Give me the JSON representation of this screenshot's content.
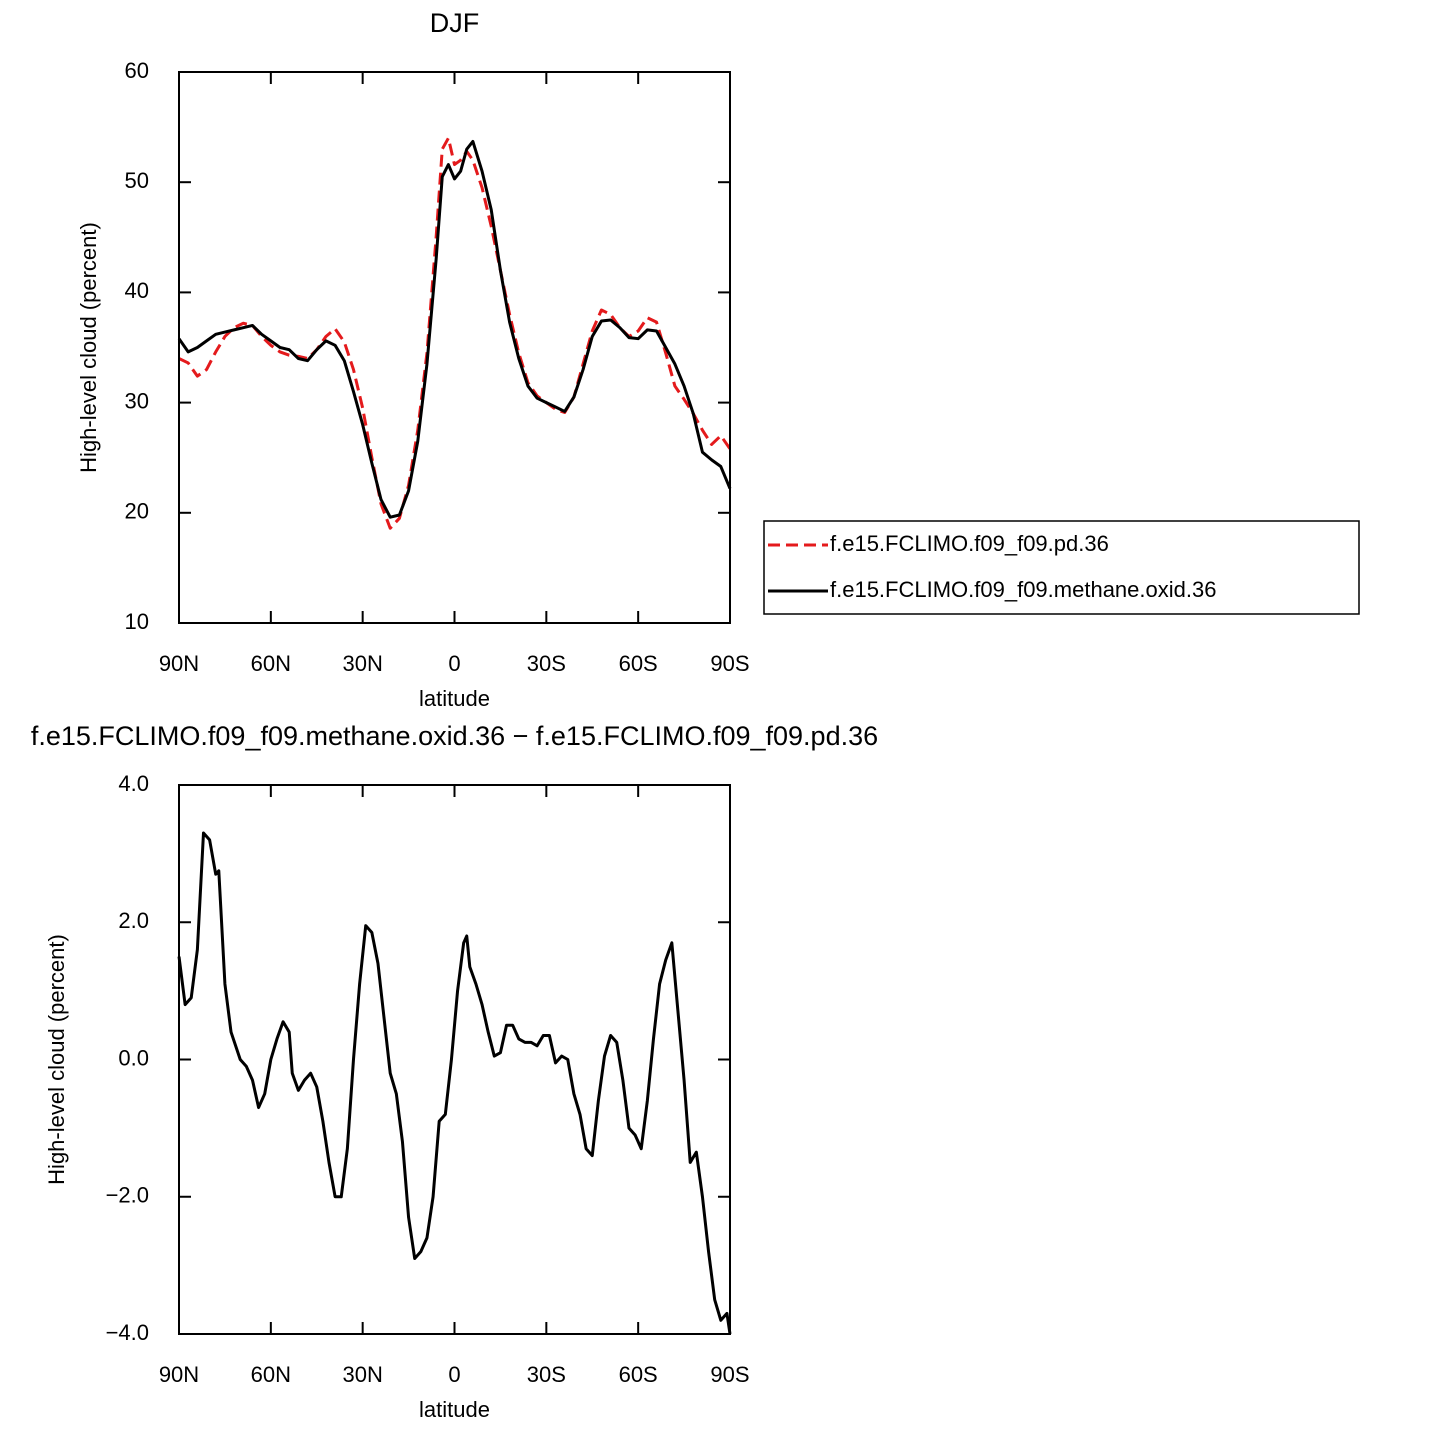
{
  "chart_data": [
    {
      "type": "line",
      "title": "DJF",
      "xlabel": "latitude",
      "ylabel": "High-level cloud (percent)",
      "xlim": [
        90,
        -90
      ],
      "xticks": [
        {
          "value": 90,
          "label": "90N"
        },
        {
          "value": 60,
          "label": "60N"
        },
        {
          "value": 30,
          "label": "30N"
        },
        0,
        {
          "value": -30,
          "label": "30S"
        },
        {
          "value": -60,
          "label": "60S"
        },
        {
          "value": -90,
          "label": "90S"
        }
      ],
      "ylim": [
        10,
        60
      ],
      "yticks": [
        10,
        20,
        30,
        40,
        50,
        60
      ],
      "x": [
        90,
        87,
        84,
        81,
        78,
        75,
        72,
        69,
        66,
        63,
        60,
        57,
        54,
        51,
        48,
        45,
        42,
        39,
        36,
        33,
        30,
        27,
        24,
        21,
        18,
        15,
        12,
        9,
        6,
        4,
        2,
        0,
        -2,
        -4,
        -6,
        -9,
        -12,
        -15,
        -18,
        -21,
        -24,
        -27,
        -30,
        -33,
        -36,
        -39,
        -42,
        -45,
        -48,
        -51,
        -54,
        -57,
        -60,
        -63,
        -66,
        -69,
        -72,
        -75,
        -78,
        -81,
        -84,
        -87,
        -90
      ],
      "series": [
        {
          "name": "f.e15.FCLIMO.f09_f09.pd.36",
          "color": "#e41a1c",
          "dash": true,
          "values": [
            34.0,
            33.6,
            32.4,
            33.0,
            34.6,
            36.0,
            36.8,
            37.2,
            37.0,
            36.0,
            35.2,
            34.6,
            34.3,
            34.2,
            34.0,
            34.8,
            36.0,
            36.7,
            35.5,
            33.0,
            29.5,
            25.0,
            20.8,
            18.6,
            19.5,
            22.5,
            27.5,
            34.5,
            45.0,
            53.0,
            54.0,
            51.6,
            52.0,
            52.8,
            52.0,
            49.5,
            46.0,
            42.0,
            38.0,
            34.5,
            31.8,
            30.6,
            30.0,
            29.4,
            29.1,
            30.5,
            33.5,
            36.5,
            38.4,
            38.0,
            36.8,
            36.0,
            36.5,
            37.7,
            37.3,
            34.5,
            31.5,
            30.3,
            29.0,
            27.5,
            26.2,
            27.0,
            25.8
          ]
        },
        {
          "name": "f.e15.FCLIMO.f09_f09.methane.oxid.36",
          "color": "#000000",
          "dash": false,
          "values": [
            35.8,
            34.6,
            35.0,
            35.6,
            36.2,
            36.4,
            36.6,
            36.8,
            37.0,
            36.2,
            35.6,
            35.0,
            34.8,
            34.0,
            33.8,
            34.8,
            35.6,
            35.2,
            33.8,
            31.0,
            28.0,
            24.5,
            21.2,
            19.6,
            19.8,
            22.0,
            26.5,
            33.5,
            43.0,
            50.5,
            51.6,
            50.3,
            51.0,
            53.0,
            53.7,
            51.0,
            47.5,
            42.0,
            37.3,
            34.0,
            31.5,
            30.4,
            30.0,
            29.6,
            29.2,
            30.5,
            33.0,
            36.0,
            37.4,
            37.5,
            36.8,
            35.9,
            35.8,
            36.6,
            36.5,
            35.0,
            33.5,
            31.5,
            29.0,
            25.5,
            24.8,
            24.2,
            22.2
          ]
        }
      ]
    },
    {
      "type": "line",
      "title": "f.e15.FCLIMO.f09_f09.methane.oxid.36 − f.e15.FCLIMO.f09_f09.pd.36",
      "xlabel": "latitude",
      "ylabel": "High-level cloud (percent)",
      "xlim": [
        90,
        -90
      ],
      "xticks": [
        {
          "value": 90,
          "label": "90N"
        },
        {
          "value": 60,
          "label": "60N"
        },
        {
          "value": 30,
          "label": "30N"
        },
        0,
        {
          "value": -30,
          "label": "30S"
        },
        {
          "value": -60,
          "label": "60S"
        },
        {
          "value": -90,
          "label": "90S"
        }
      ],
      "ylim": [
        -4,
        4
      ],
      "yticks": [
        {
          "value": -4,
          "label": "−4.0"
        },
        {
          "value": -2,
          "label": "−2.0"
        },
        {
          "value": 0,
          "label": "0.0"
        },
        {
          "value": 2,
          "label": "2.0"
        },
        {
          "value": 4,
          "label": "4.0"
        }
      ],
      "x": [
        90,
        88,
        86,
        84,
        82,
        80,
        78,
        77,
        75,
        73,
        70,
        68,
        66,
        64,
        62,
        60,
        58,
        56,
        54,
        53,
        51,
        49,
        47,
        45,
        43,
        41,
        39,
        37,
        35,
        33,
        31,
        29,
        27,
        25,
        23,
        21,
        19,
        17,
        15,
        13,
        11,
        9,
        7,
        5,
        3,
        1,
        -1,
        -3,
        -4,
        -5,
        -7,
        -9,
        -11,
        -13,
        -15,
        -17,
        -19,
        -21,
        -23,
        -25,
        -27,
        -29,
        -31,
        -33,
        -35,
        -37,
        -39,
        -41,
        -43,
        -45,
        -47,
        -49,
        -51,
        -53,
        -55,
        -57,
        -59,
        -61,
        -63,
        -65,
        -67,
        -69,
        -71,
        -73,
        -75,
        -77,
        -79,
        -81,
        -83,
        -85,
        -87,
        -89,
        -90
      ],
      "series": [
        {
          "name": null,
          "color": "#000000",
          "dash": false,
          "values": [
            1.5,
            0.8,
            0.9,
            1.6,
            3.3,
            3.2,
            2.7,
            2.75,
            1.1,
            0.4,
            0.0,
            -0.1,
            -0.3,
            -0.7,
            -0.5,
            0.0,
            0.3,
            0.55,
            0.4,
            -0.2,
            -0.45,
            -0.3,
            -0.2,
            -0.4,
            -0.9,
            -1.5,
            -2.0,
            -2.0,
            -1.3,
            0.0,
            1.1,
            1.95,
            1.85,
            1.4,
            0.6,
            -0.2,
            -0.5,
            -1.2,
            -2.3,
            -2.9,
            -2.8,
            -2.6,
            -2.0,
            -0.9,
            -0.8,
            0.0,
            1.0,
            1.7,
            1.8,
            1.35,
            1.1,
            0.8,
            0.4,
            0.05,
            0.1,
            0.5,
            0.5,
            0.3,
            0.25,
            0.25,
            0.2,
            0.35,
            0.35,
            -0.05,
            0.05,
            0.0,
            -0.5,
            -0.8,
            -1.3,
            -1.4,
            -0.6,
            0.05,
            0.35,
            0.25,
            -0.3,
            -1.0,
            -1.1,
            -1.3,
            -0.6,
            0.3,
            1.1,
            1.45,
            1.7,
            0.7,
            -0.3,
            -1.5,
            -1.35,
            -2.0,
            -2.8,
            -3.5,
            -3.8,
            -3.7,
            -4.0
          ]
        }
      ]
    }
  ]
}
